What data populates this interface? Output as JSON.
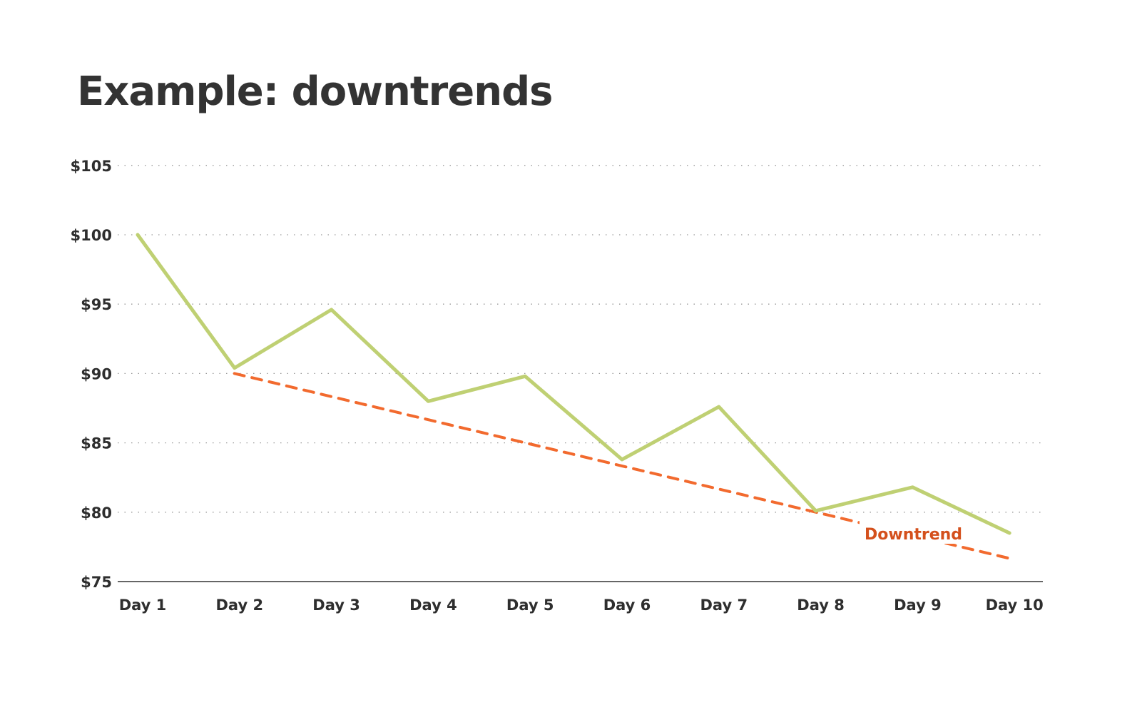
{
  "chart_data": {
    "type": "line",
    "title": "Example: downtrends",
    "categories": [
      "Day 1",
      "Day 2",
      "Day 3",
      "Day 4",
      "Day 5",
      "Day 6",
      "Day 7",
      "Day 8",
      "Day 9",
      "Day 10"
    ],
    "series": [
      {
        "values": [
          100.0,
          90.4,
          94.6,
          88.0,
          89.8,
          83.8,
          87.6,
          80.1,
          81.8,
          78.5
        ],
        "color": "#bfd073"
      }
    ],
    "trendline": {
      "label": "Downtrend",
      "from": {
        "category": "Day 2",
        "value": 90
      },
      "to": {
        "category": "Day 10",
        "value": 76.67
      },
      "color": "#f26a2e",
      "label_color": "#d4501c",
      "style": "dashed"
    },
    "ylim": [
      75,
      105
    ],
    "yticks": [
      75,
      80,
      85,
      90,
      95,
      100,
      105
    ],
    "ytick_labels": [
      "$75",
      "$80",
      "$85",
      "$90",
      "$95",
      "$100",
      "$105"
    ],
    "grid": "horizontal dotted",
    "xlabel": "",
    "ylabel": ""
  }
}
